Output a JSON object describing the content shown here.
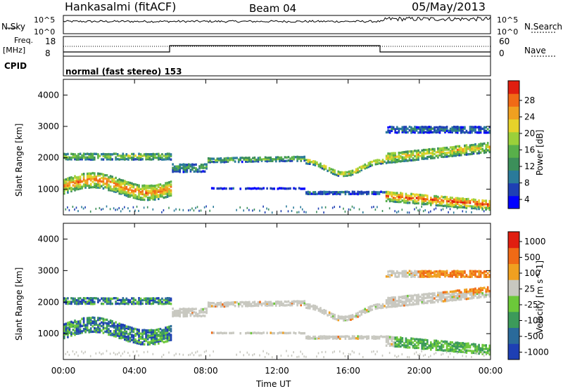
{
  "header": {
    "station": "Hankasalmi (fitACF)",
    "beam": "Beam 04",
    "date": "05/May/2013"
  },
  "status": {
    "nsky_label": "N.Sky",
    "nsearch_label": "N.Search",
    "noise_top": "10^5",
    "noise_bottom": "10^0",
    "freq_label": "Freq.",
    "freq_unit": "[MHz]",
    "freq_ticks": [
      "18",
      "8"
    ],
    "nave_label": "Nave",
    "nave_ticks": [
      "60",
      "0"
    ],
    "cpid_label": "CPID",
    "cpid_value": "normal (fast stereo) 153"
  },
  "chart_data": [
    {
      "type": "heatmap",
      "title": "",
      "parameter": "Power",
      "ylabel": "Slant Range [km]",
      "xlabel": "Time UT",
      "x_range": [
        "00:00",
        "24:00"
      ],
      "ylim": [
        180,
        4500
      ],
      "x_ticks": [
        "00:00",
        "04:00",
        "08:00",
        "12:00",
        "16:00",
        "20:00",
        "00:00"
      ],
      "y_ticks": [
        1000,
        2000,
        3000,
        4000
      ],
      "colorbar": {
        "label": "Power [dB]",
        "range": [
          0,
          32
        ],
        "ticks": [
          "28",
          "24",
          "20",
          "16",
          "12",
          "8",
          "4"
        ],
        "colors": [
          "#0000ff",
          "#1e3fb4",
          "#2a7a9a",
          "#3c8f5a",
          "#58b04a",
          "#9bd03a",
          "#e6d22a",
          "#f0a020",
          "#f06a16",
          "#e01e10"
        ]
      }
    },
    {
      "type": "heatmap",
      "title": "",
      "parameter": "Velocity",
      "ylabel": "Slant Range [km]",
      "xlabel": "Time UT",
      "x_range": [
        "00:00",
        "24:00"
      ],
      "ylim": [
        180,
        4500
      ],
      "x_ticks": [
        "00:00",
        "04:00",
        "08:00",
        "12:00",
        "16:00",
        "20:00",
        "00:00"
      ],
      "y_ticks": [
        1000,
        2000,
        3000,
        4000
      ],
      "colorbar": {
        "label": "Velocity [m s^-1]",
        "ticks": [
          "1000",
          "500",
          "100",
          "25",
          "-25",
          "-100",
          "-500",
          "-1000"
        ],
        "colors": [
          "#1e3fb4",
          "#2a6a9a",
          "#3c9a5a",
          "#6cc83a",
          "#c8c8c0",
          "#f0a020",
          "#f06a16",
          "#e01e10"
        ]
      }
    }
  ]
}
